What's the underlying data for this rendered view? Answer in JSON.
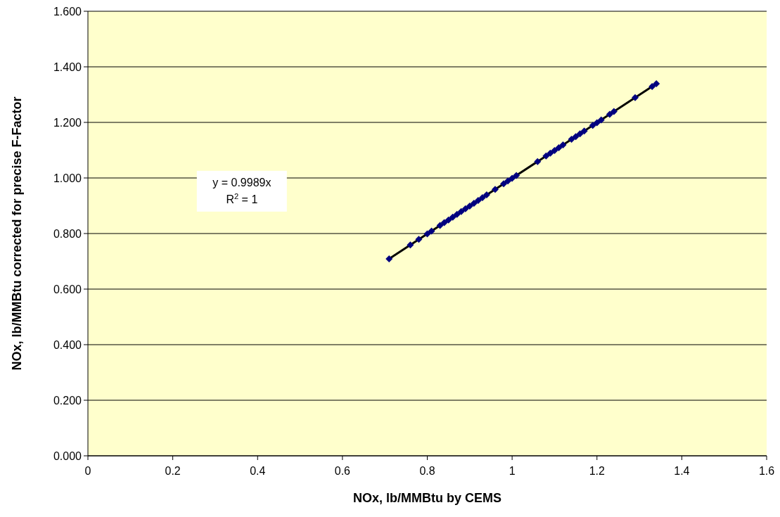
{
  "chart_data": {
    "type": "scatter",
    "xlabel": "NOx, lb/MMBtu by CEMS",
    "ylabel": "NOx, lb/MMBtu corrected for precise F-Factor",
    "xlim": [
      0,
      1.6
    ],
    "xticks": [
      0,
      0.2,
      0.4,
      0.6,
      0.8,
      1,
      1.2,
      1.4,
      1.6
    ],
    "ylim": [
      0,
      1.6
    ],
    "yticks": [
      {
        "value": 0,
        "label": "0.000"
      },
      {
        "value": 0.2,
        "label": "0.200"
      },
      {
        "value": 0.4,
        "label": "0.400"
      },
      {
        "value": 0.6,
        "label": "0.600"
      },
      {
        "value": 0.8,
        "label": "0.800"
      },
      {
        "value": 1,
        "label": "1.000"
      },
      {
        "value": 1.2,
        "label": "1.200"
      },
      {
        "value": 1.4,
        "label": "1.400"
      },
      {
        "value": 1.6,
        "label": "1.600"
      }
    ],
    "grid": "y",
    "annotations": [
      "y = 0.9989x",
      "R$^{2}$ = 1"
    ],
    "series": [
      {
        "marker": "diamond",
        "color": "#000080",
        "x": [
          0.71,
          0.76,
          0.78,
          0.8,
          0.81,
          0.83,
          0.84,
          0.85,
          0.86,
          0.87,
          0.88,
          0.89,
          0.9,
          0.91,
          0.92,
          0.93,
          0.94,
          0.96,
          0.98,
          0.99,
          1.0,
          1.01,
          1.06,
          1.08,
          1.09,
          1.1,
          1.11,
          1.12,
          1.14,
          1.15,
          1.16,
          1.17,
          1.19,
          1.2,
          1.21,
          1.23,
          1.24,
          1.29,
          1.33,
          1.34
        ],
        "values": [
          0.709,
          0.759,
          0.779,
          0.799,
          0.809,
          0.829,
          0.839,
          0.849,
          0.859,
          0.869,
          0.879,
          0.889,
          0.899,
          0.909,
          0.919,
          0.929,
          0.939,
          0.959,
          0.979,
          0.989,
          0.999,
          1.009,
          1.059,
          1.079,
          1.089,
          1.099,
          1.109,
          1.119,
          1.139,
          1.149,
          1.159,
          1.169,
          1.189,
          1.199,
          1.209,
          1.229,
          1.239,
          1.289,
          1.329,
          1.339
        ]
      },
      {
        "type": "line",
        "color": "#000000",
        "x": [
          0.71,
          1.34
        ],
        "values": [
          0.709,
          1.339
        ]
      }
    ]
  }
}
